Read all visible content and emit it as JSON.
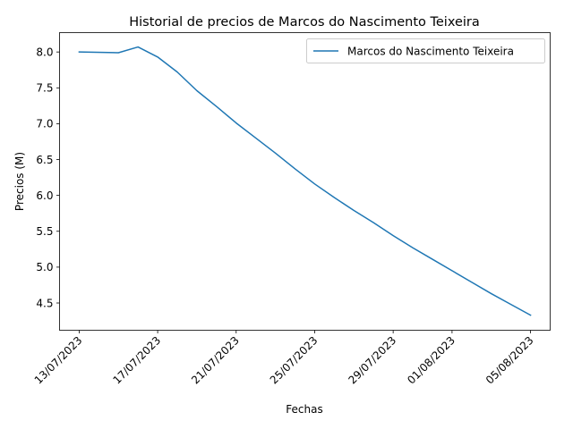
{
  "chart_data": {
    "type": "line",
    "title": "Historial de precios de Marcos do Nascimento Teixeira",
    "xlabel": "Fechas",
    "ylabel": "Precios (M)",
    "x_ticks": [
      "13/07/2023",
      "17/07/2023",
      "21/07/2023",
      "25/07/2023",
      "29/07/2023",
      "01/08/2023",
      "05/08/2023"
    ],
    "y_ticks": [
      "4.5",
      "5.0",
      "5.5",
      "6.0",
      "6.5",
      "7.0",
      "7.5",
      "8.0"
    ],
    "ylim": [
      4.12,
      8.27
    ],
    "xlim": [
      "12/07/2023",
      "06/08/2023"
    ],
    "legend_position": "top-right",
    "grid": false,
    "color": "#1f77b4",
    "series": [
      {
        "name": "Marcos do Nascimento Teixeira",
        "x": [
          "13/07/2023",
          "15/07/2023",
          "16/07/2023",
          "17/07/2023",
          "18/07/2023",
          "19/07/2023",
          "20/07/2023",
          "21/07/2023",
          "22/07/2023",
          "23/07/2023",
          "24/07/2023",
          "25/07/2023",
          "26/07/2023",
          "27/07/2023",
          "28/07/2023",
          "29/07/2023",
          "30/07/2023",
          "31/07/2023",
          "01/08/2023",
          "02/08/2023",
          "03/08/2023",
          "04/08/2023",
          "05/08/2023"
        ],
        "values": [
          8.0,
          7.99,
          8.07,
          7.93,
          7.72,
          7.46,
          7.24,
          7.01,
          6.8,
          6.59,
          6.37,
          6.16,
          5.97,
          5.79,
          5.62,
          5.44,
          5.27,
          5.11,
          4.95,
          4.79,
          4.63,
          4.48,
          4.33
        ]
      }
    ]
  }
}
